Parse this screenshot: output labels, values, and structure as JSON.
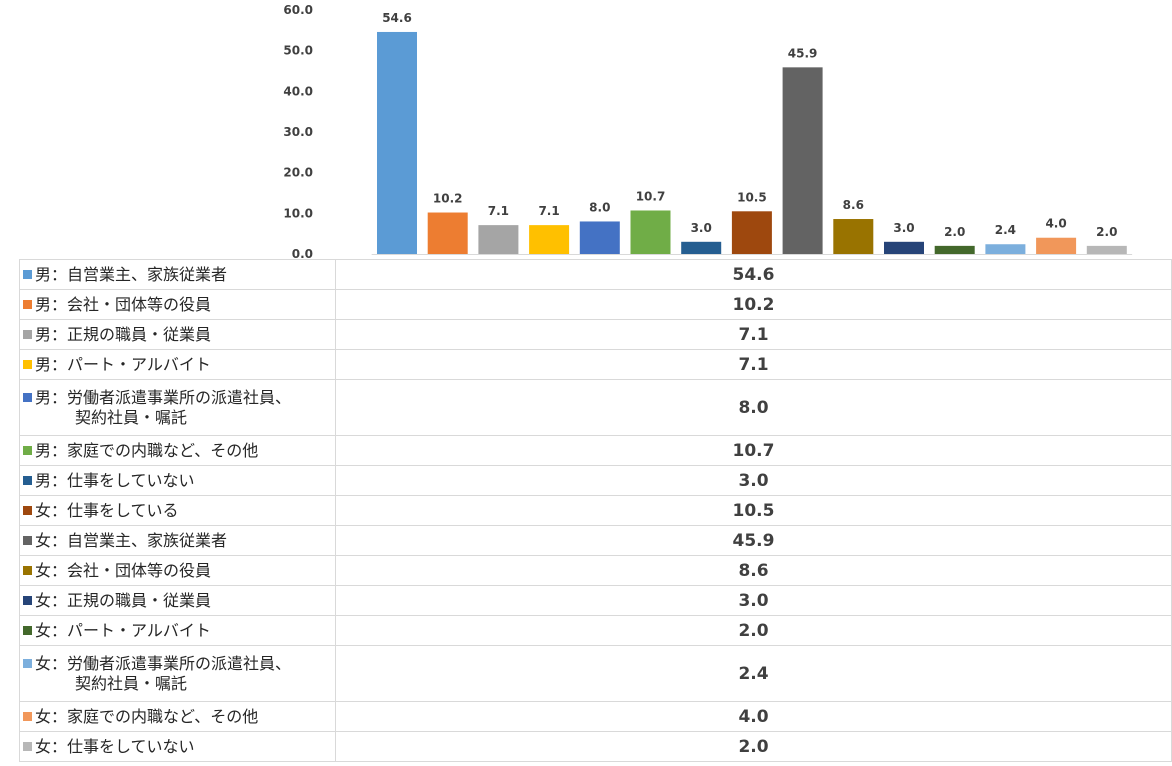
{
  "chart_data": {
    "type": "bar",
    "title": "",
    "xlabel": "",
    "ylabel": "",
    "ylim": [
      0,
      60
    ],
    "yticks": [
      "0.0",
      "10.0",
      "20.0",
      "30.0",
      "40.0",
      "50.0",
      "60.0"
    ],
    "grid": false,
    "legend": "data-table-left",
    "categories": [
      "男：自営業主、家族従業者",
      "男：会社・団体等の役員",
      "男：正規の職員・従業員",
      "男：パート・アルバイト",
      "男：労働者派遣事業所の派遣社員、\n契約社員・嘱託",
      "男：家庭での内職など、その他",
      "男：仕事をしていない",
      "女：仕事をしている",
      "女：自営業主、家族従業者",
      "女：会社・団体等の役員",
      "女：正規の職員・従業員",
      "女：パート・アルバイト",
      "女：労働者派遣事業所の派遣社員、\n契約社員・嘱託",
      "女：家庭での内職など、その他",
      "女：仕事をしていない"
    ],
    "values": [
      54.6,
      10.2,
      7.1,
      7.1,
      8.0,
      10.7,
      3.0,
      10.5,
      45.9,
      8.6,
      3.0,
      2.0,
      2.4,
      4.0,
      2.0
    ],
    "value_labels": [
      "54.6",
      "10.2",
      "7.1",
      "7.1",
      "8.0",
      "10.7",
      "3.0",
      "10.5",
      "45.9",
      "8.6",
      "3.0",
      "2.0",
      "2.4",
      "4.0",
      "2.0"
    ],
    "colors": [
      "#5b9bd5",
      "#ed7d31",
      "#a5a5a5",
      "#ffc000",
      "#4472c4",
      "#70ad47",
      "#255e91",
      "#9e480e",
      "#636363",
      "#997300",
      "#264478",
      "#43682b",
      "#7cafdd",
      "#f1975a",
      "#b7b7b7"
    ]
  }
}
